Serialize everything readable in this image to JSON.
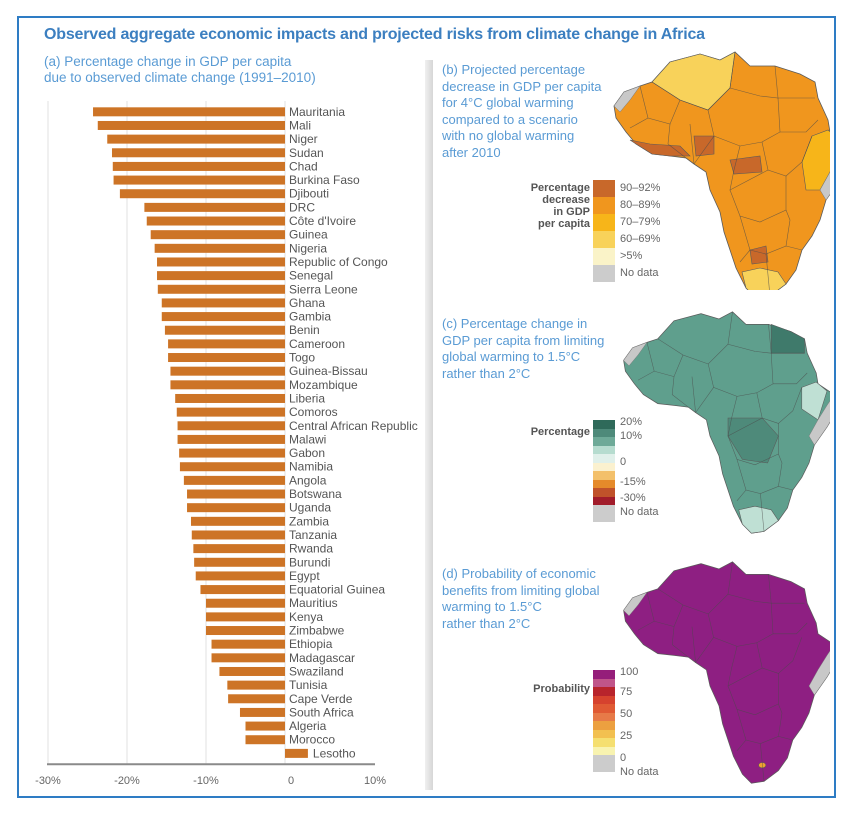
{
  "header": {
    "title": "Observed aggregate economic impacts and projected risks from climate change in Africa"
  },
  "panel_a": {
    "title_line1": "(a) Percentage change in GDP per capita",
    "title_line2": "due to observed climate change (1991–2010)"
  },
  "panel_b": {
    "title_lines": [
      "(b) Projected percentage",
      "decrease in GDP per capita",
      "for 4°C global warming",
      "compared to a scenario",
      "with no global warming",
      "after 2010"
    ],
    "legend_title_lines": [
      "Percentage",
      "decrease",
      "in GDP",
      "per capita"
    ],
    "legend": [
      {
        "label": "90–92%",
        "color": "#c8682a"
      },
      {
        "label": "80–89%",
        "color": "#f0961e"
      },
      {
        "label": "70–79%",
        "color": "#f7b519"
      },
      {
        "label": "60–69%",
        "color": "#f8d25a"
      },
      {
        "label": ">5%",
        "color": "#faf3c8"
      },
      {
        "label": "No data",
        "color": "#cccccc"
      }
    ],
    "fill_color": "#f0961e",
    "north_color": "#f8d25a"
  },
  "panel_c": {
    "title_lines": [
      "(c) Percentage change in",
      "GDP per capita from limiting",
      "global warming to 1.5°C",
      "rather than 2°C"
    ],
    "legend_title": "Percentage",
    "legend_colors": [
      "#2f6a5a",
      "#4e8a7a",
      "#6eaa98",
      "#b6dccf",
      "#e0f0ea",
      "#fbf1cf",
      "#f3c06a",
      "#e58a2a",
      "#c0522a",
      "#a11c2a",
      "#cccccc"
    ],
    "legend_labels": [
      "20%",
      "10%",
      "0",
      "-15%",
      "-30%",
      "No data"
    ],
    "fill_color": "#5f9f8d",
    "dark_color": "#3f7a6b",
    "light_color": "#bfe0d4"
  },
  "panel_d": {
    "title_lines": [
      "(d) Probability of economic",
      "benefits from limiting global",
      "warming to 1.5°C",
      "rather than 2°C"
    ],
    "legend_title": "Probability",
    "legend_colors": [
      "#951e7a",
      "#c0558a",
      "#b8242c",
      "#d6422e",
      "#e05a34",
      "#e77a48",
      "#eca040",
      "#f2c050",
      "#f5df70",
      "#f8f3b0",
      "#cccccc"
    ],
    "legend_labels": [
      "100",
      "75",
      "50",
      "25",
      "0",
      "No data"
    ],
    "fill_color": "#8e1f82",
    "lesotho_color": "#f0a030"
  },
  "chart_data": {
    "type": "bar",
    "orientation": "horizontal",
    "title": "(a) Percentage change in GDP per capita due to observed climate change (1991–2010)",
    "xlabel": "",
    "ylabel": "",
    "xlim": [
      -30,
      10
    ],
    "xticks": [
      -30,
      -20,
      -10,
      0,
      10
    ],
    "xtick_labels": [
      "-30%",
      "-20%",
      "-10%",
      "0",
      "10%"
    ],
    "grid": "vertical",
    "bar_color": "#cd7426",
    "categories": [
      "Mauritania",
      "Mali",
      "Niger",
      "Sudan",
      "Chad",
      "Burkina Faso",
      "Djibouti",
      "DRC",
      "Côte d'Ivoire",
      "Guinea",
      "Nigeria",
      "Republic of Congo",
      "Senegal",
      "Sierra Leone",
      "Ghana",
      "Gambia",
      "Benin",
      "Cameroon",
      "Togo",
      "Guinea-Bissau",
      "Mozambique",
      "Liberia",
      "Comoros",
      "Central African Republic",
      "Malawi",
      "Gabon",
      "Namibia",
      "Angola",
      "Botswana",
      "Uganda",
      "Zambia",
      "Tanzania",
      "Rwanda",
      "Burundi",
      "Egypt",
      "Equatorial Guinea",
      "Mauritius",
      "Kenya",
      "Zimbabwe",
      "Ethiopia",
      "Madagascar",
      "Swaziland",
      "Tunisia",
      "Cape Verde",
      "South Africa",
      "Algeria",
      "Morocco",
      "Lesotho"
    ],
    "values": [
      -24.3,
      -23.7,
      -22.5,
      -21.9,
      -21.8,
      -21.7,
      -20.9,
      -17.8,
      -17.5,
      -17.0,
      -16.5,
      -16.2,
      -16.2,
      -16.1,
      -15.6,
      -15.6,
      -15.2,
      -14.8,
      -14.8,
      -14.5,
      -14.5,
      -13.9,
      -13.7,
      -13.6,
      -13.6,
      -13.4,
      -13.3,
      -12.8,
      -12.4,
      -12.4,
      -11.9,
      -11.8,
      -11.6,
      -11.5,
      -11.3,
      -10.7,
      -10.0,
      -10.0,
      -10.0,
      -9.3,
      -9.3,
      -8.3,
      -7.3,
      -7.2,
      -5.7,
      -5.0,
      -5.0,
      2.9
    ]
  }
}
